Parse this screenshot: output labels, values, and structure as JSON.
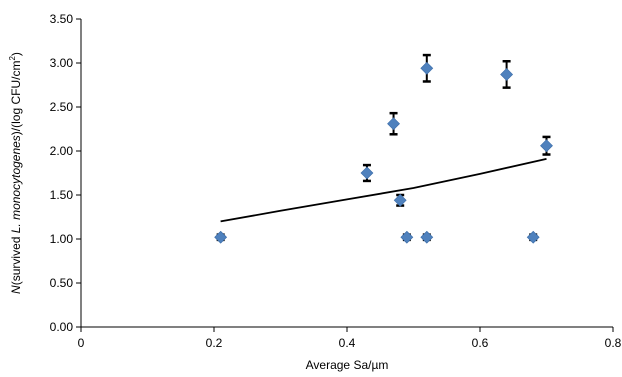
{
  "chart_data": {
    "type": "scatter",
    "xlabel": "Average Sa/µm",
    "ylabel_parts": {
      "n": "N",
      "prefix": "(survived ",
      "species": "L. monocytogenes",
      "suffix": ")/(log CFU/cm",
      "sup": "2",
      "close": ")"
    },
    "xlim": [
      0,
      0.8
    ],
    "ylim": [
      0,
      3.5
    ],
    "x_ticks": [
      0,
      0.2,
      0.4,
      0.6,
      0.8
    ],
    "x_tick_labels": [
      "0",
      "0.2",
      "0.4",
      "0.6",
      "0.8"
    ],
    "y_ticks": [
      0,
      0.5,
      1.0,
      1.5,
      2.0,
      2.5,
      3.0,
      3.5
    ],
    "y_tick_labels": [
      "0.00",
      "0.50",
      "1.00",
      "1.50",
      "2.00",
      "2.50",
      "3.00",
      "3.50"
    ],
    "grid": false,
    "marker": "diamond",
    "marker_color": "#4F81BD",
    "errorbar_color": "#000000",
    "trendline_color": "#000000",
    "points": [
      {
        "x": 0.21,
        "y": 1.02,
        "err": 0.03
      },
      {
        "x": 0.43,
        "y": 1.75,
        "err": 0.09
      },
      {
        "x": 0.47,
        "y": 2.31,
        "err": 0.12
      },
      {
        "x": 0.48,
        "y": 1.44,
        "err": 0.06
      },
      {
        "x": 0.49,
        "y": 1.02,
        "err": 0.03
      },
      {
        "x": 0.52,
        "y": 2.94,
        "err": 0.15
      },
      {
        "x": 0.52,
        "y": 1.02,
        "err": 0.03
      },
      {
        "x": 0.64,
        "y": 2.87,
        "err": 0.15
      },
      {
        "x": 0.68,
        "y": 1.02,
        "err": 0.03
      },
      {
        "x": 0.7,
        "y": 2.06,
        "err": 0.1
      }
    ],
    "trendline": {
      "x": [
        0.21,
        0.3,
        0.4,
        0.5,
        0.6,
        0.7
      ],
      "y": [
        1.2,
        1.32,
        1.45,
        1.58,
        1.74,
        1.91
      ]
    }
  }
}
